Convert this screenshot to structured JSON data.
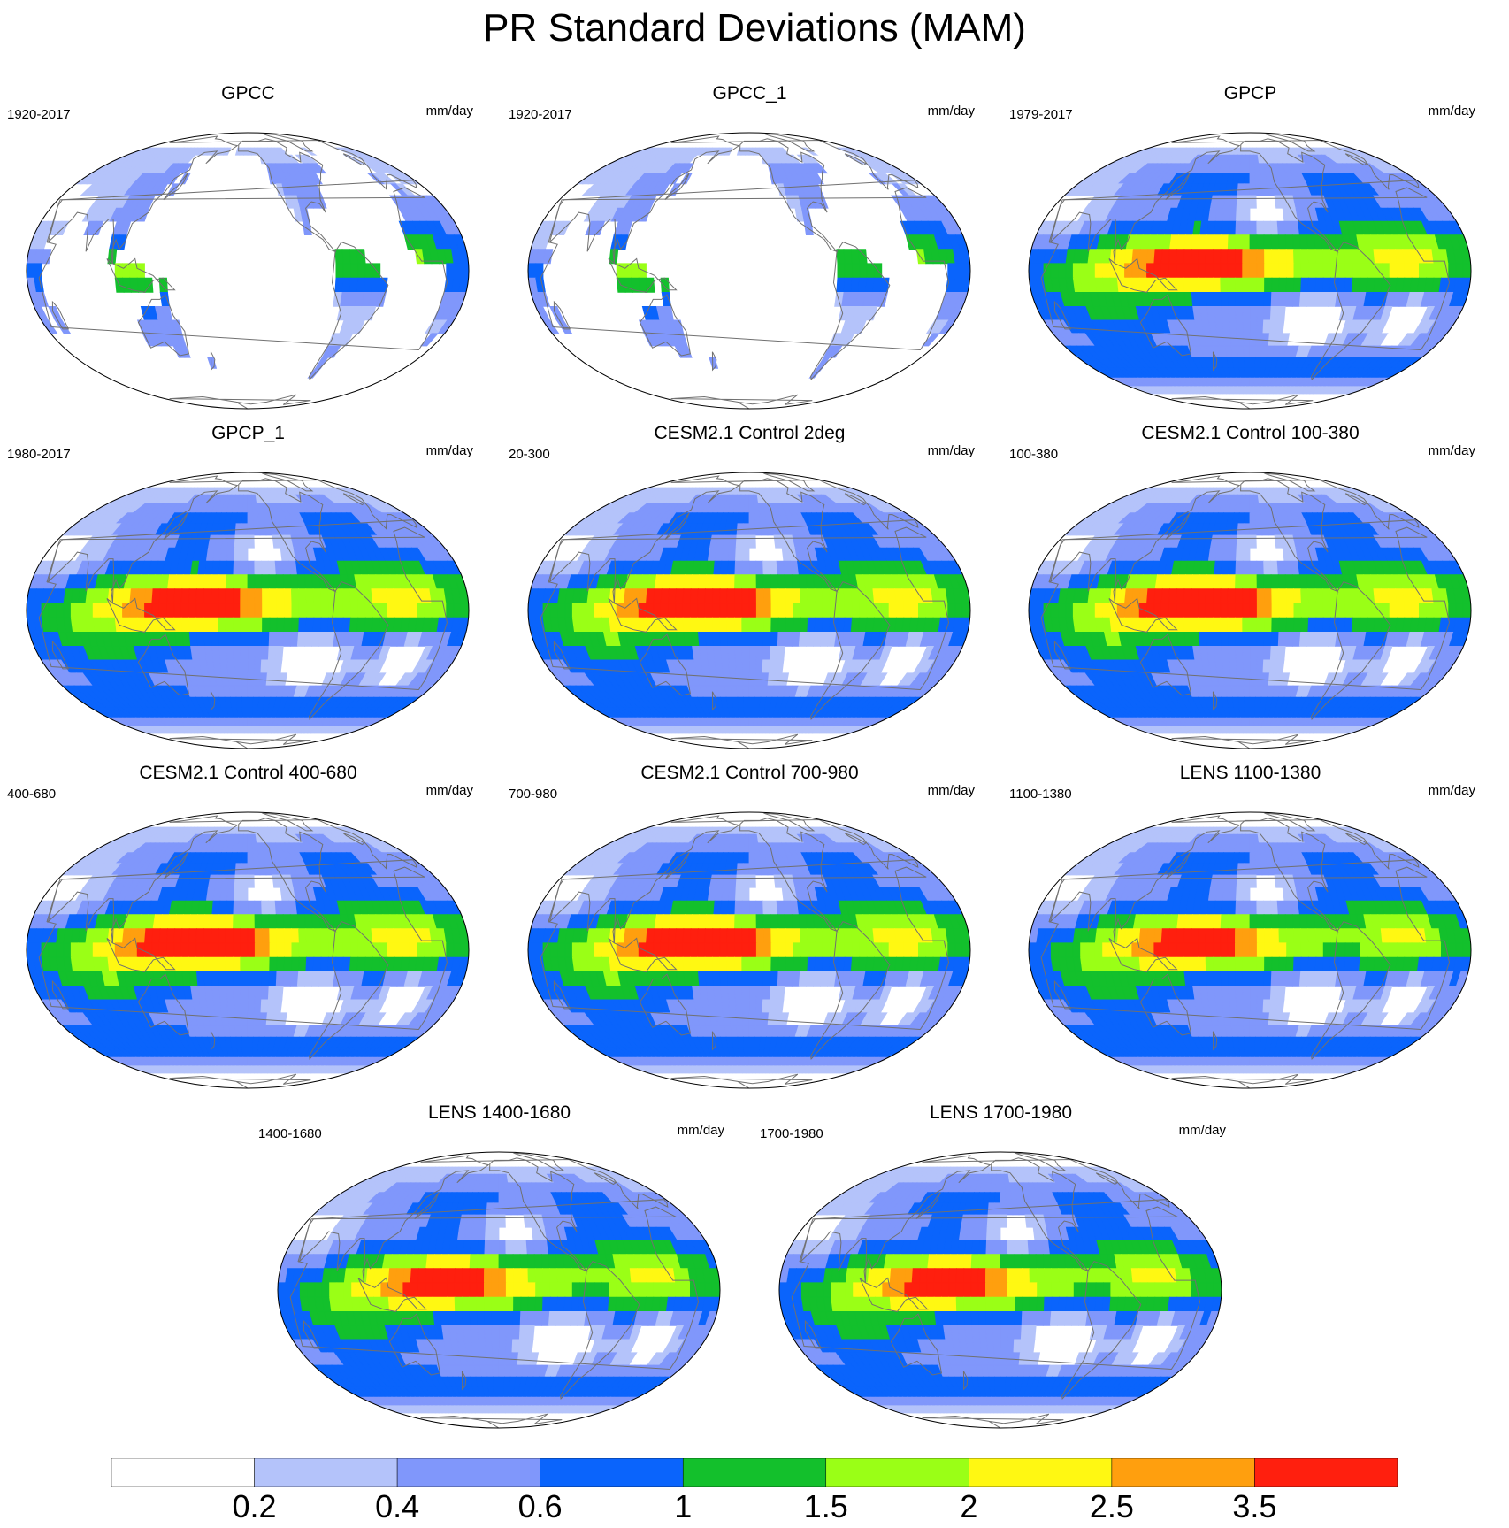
{
  "title": "PR Standard Deviations (MAM)",
  "units_label": "mm/day",
  "palette": [
    "#ffffff",
    "#b4c3fa",
    "#8097fb",
    "#0a64fc",
    "#13c02c",
    "#9aff16",
    "#fff812",
    "#ff9f0e",
    "#ff1f0e"
  ],
  "colorbar": {
    "levels": [
      "0.2",
      "0.4",
      "0.6",
      "1",
      "1.5",
      "2",
      "2.5",
      "3.5"
    ]
  },
  "panels": [
    {
      "title": "GPCC",
      "period": "1920-2017",
      "units": "mm/day",
      "style": "land"
    },
    {
      "title": "GPCC_1",
      "period": "1920-2017",
      "units": "mm/day",
      "style": "land"
    },
    {
      "title": "GPCP",
      "period": "1979-2017",
      "units": "mm/day",
      "style": "obs",
      "peak": 7
    },
    {
      "title": "GPCP_1",
      "period": "1980-2017",
      "units": "mm/day",
      "style": "obs",
      "peak": 7
    },
    {
      "title": "CESM2.1 Control 2deg",
      "period": "20-300",
      "units": "mm/day",
      "style": "model",
      "peak": 8
    },
    {
      "title": "CESM2.1 Control 100-380",
      "period": "100-380",
      "units": "mm/day",
      "style": "model",
      "peak": 8
    },
    {
      "title": "CESM2.1 Control 400-680",
      "period": "400-680",
      "units": "mm/day",
      "style": "model",
      "peak": 8
    },
    {
      "title": "CESM2.1 Control 700-980",
      "period": "700-980",
      "units": "mm/day",
      "style": "model",
      "peak": 8
    },
    {
      "title": "LENS 1100-1380",
      "period": "1100-1380",
      "units": "mm/day",
      "style": "lens",
      "peak": 7
    },
    {
      "title": "LENS 1400-1680",
      "period": "1400-1680",
      "units": "mm/day",
      "style": "lens",
      "peak": 7
    },
    {
      "title": "LENS 1700-1980",
      "period": "1700-1980",
      "units": "mm/day",
      "style": "lens",
      "peak": 7
    }
  ]
}
